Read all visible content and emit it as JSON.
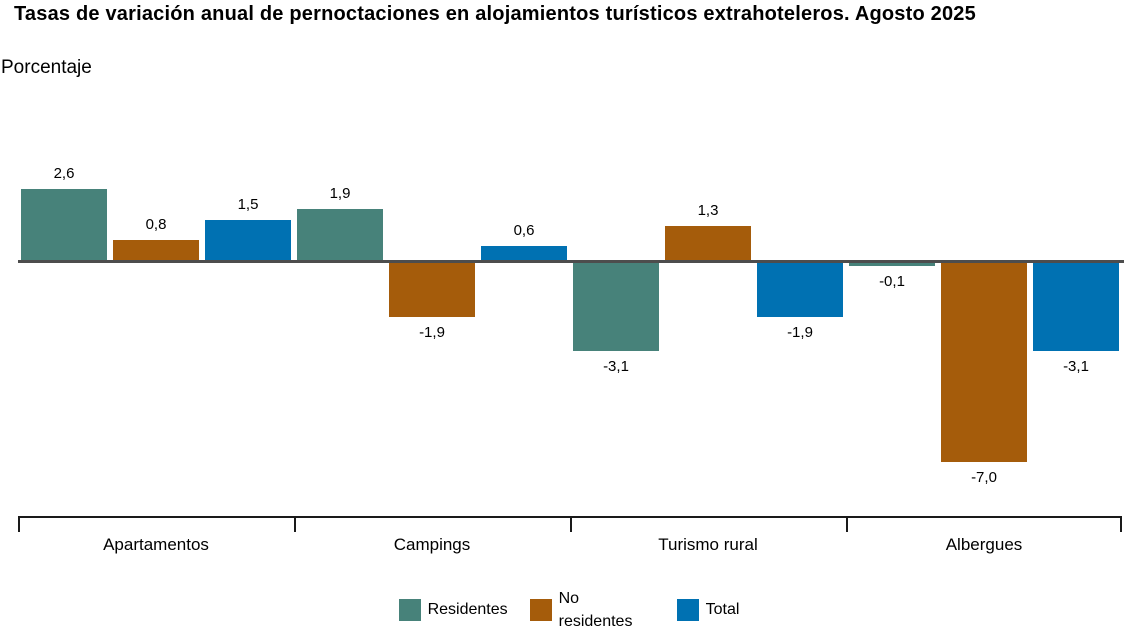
{
  "header": {
    "title": "Tasas de variación anual de pernoctaciones en alojamientos turísticos extrahoteleros. Agosto 2025",
    "subtitle": "Porcentaje"
  },
  "chart_data": {
    "type": "bar",
    "title": "Tasas de variación anual de pernoctaciones en alojamientos turísticos extrahoteleros. Agosto 2025",
    "ylabel": "Porcentaje",
    "xlabel": "",
    "categories": [
      "Apartamentos",
      "Campings",
      "Turismo rural",
      "Albergues"
    ],
    "series": [
      {
        "name": "Residentes",
        "color": "#47827A",
        "values": [
          2.6,
          1.9,
          -3.1,
          -0.1
        ],
        "labels": [
          "2,6",
          "1,9",
          "-3,1",
          "-0,1"
        ]
      },
      {
        "name": "No residentes",
        "color": "#A55C0B",
        "values": [
          0.8,
          -1.9,
          1.3,
          -7.0
        ],
        "labels": [
          "0,8",
          "-1,9",
          "1,3",
          "-7,0"
        ]
      },
      {
        "name": "Total",
        "color": "#0071B2",
        "values": [
          1.5,
          0.6,
          -1.9,
          -3.1
        ],
        "labels": [
          "1,5",
          "0,6",
          "-1,9",
          "-3,1"
        ]
      }
    ],
    "ylim": [
      -7.5,
      3.0
    ],
    "grid": false,
    "legend_position": "bottom",
    "baseline_color": "#4D4D4D",
    "axis_color": "#1A1A1A",
    "decimal_separator": ","
  }
}
